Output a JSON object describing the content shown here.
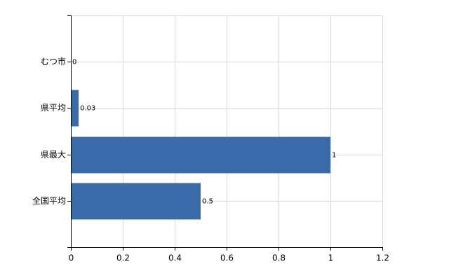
{
  "chart_data": {
    "type": "hbar",
    "categories": [
      "むつ市",
      "県平均",
      "県最大",
      "全国平均"
    ],
    "values": [
      0,
      0.03,
      1,
      0.5
    ],
    "color": "#3a6aa8",
    "xlim": [
      0,
      1.2
    ],
    "xticks": [
      0,
      0.2,
      0.4,
      0.6,
      0.8,
      1,
      1.2
    ],
    "grid": true
  }
}
